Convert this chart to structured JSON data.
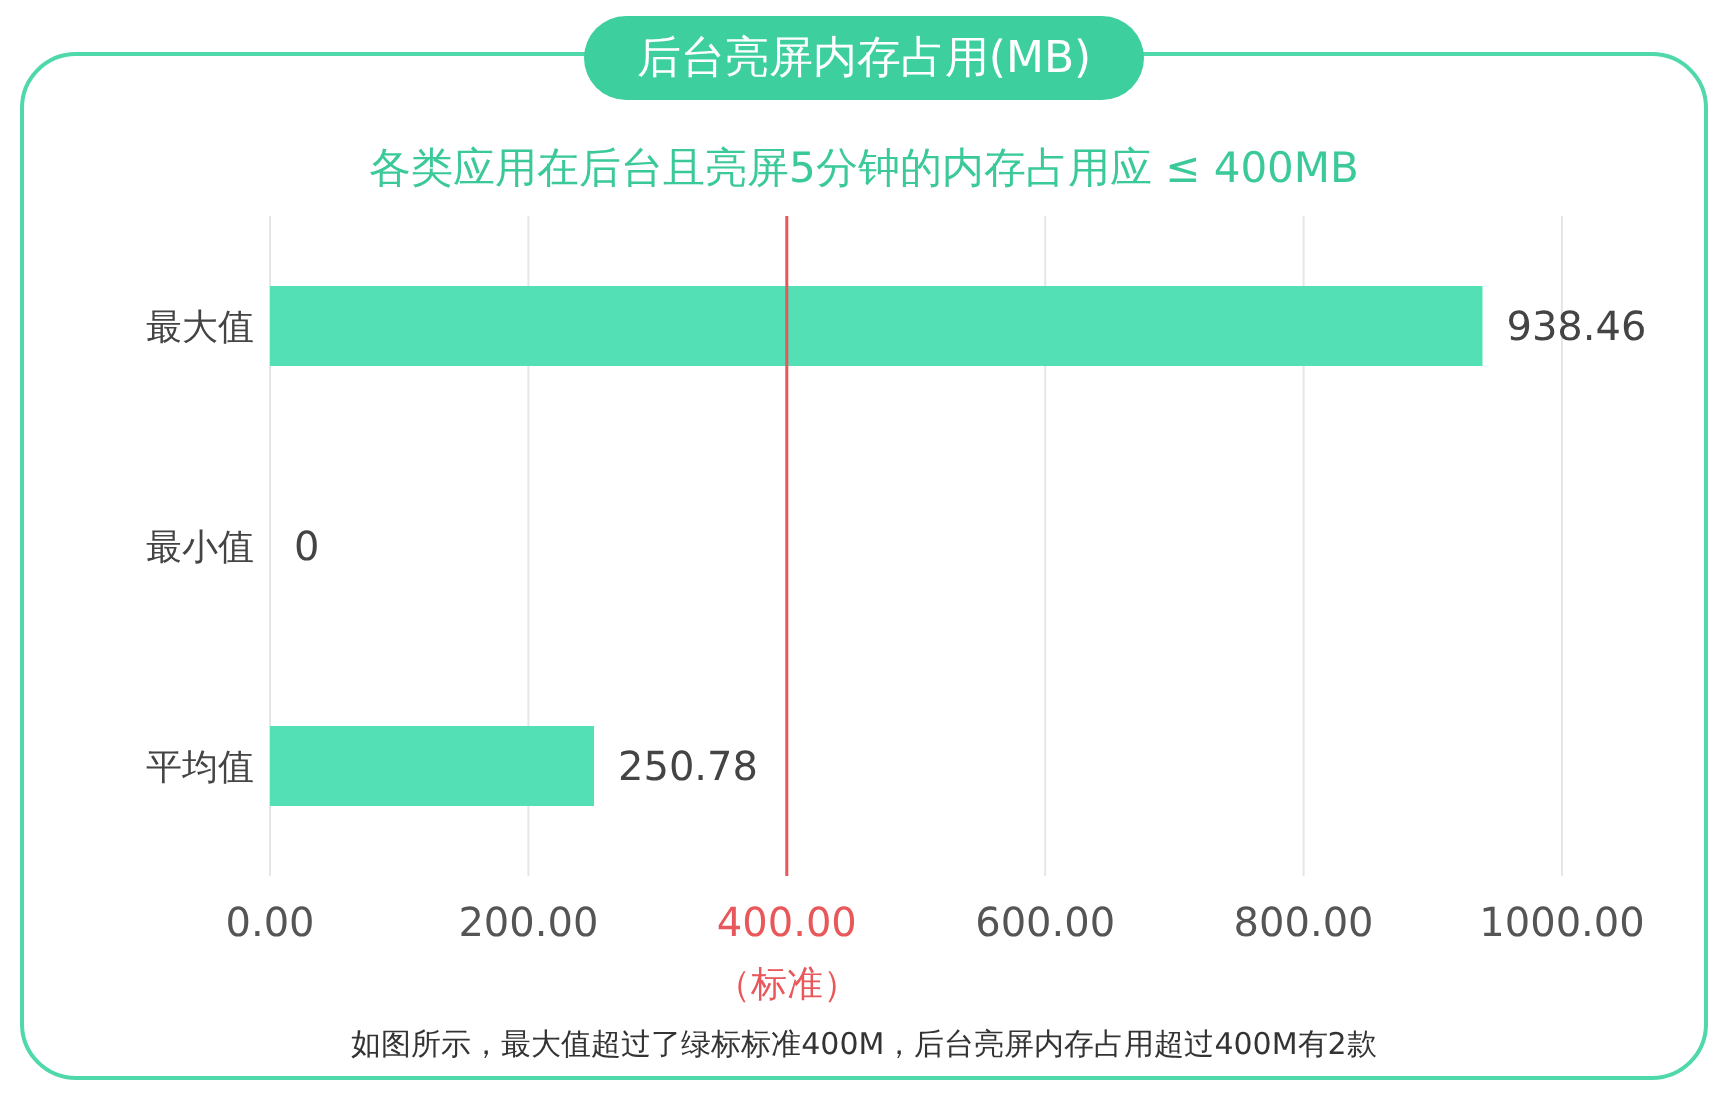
{
  "chart_data": {
    "type": "bar",
    "orientation": "horizontal",
    "title": "后台亮屏内存占用(MB)",
    "subtitle": "各类应用在后台且亮屏5分钟的内存占用应 ≤ 400MB",
    "categories": [
      "最大值",
      "最小值",
      "平均值"
    ],
    "values": [
      938.46,
      0,
      250.78
    ],
    "color": "#52e0b4",
    "data_labels": true,
    "xlim": [
      0,
      1000
    ],
    "xticks": [
      {
        "value": 0,
        "label": "0.00"
      },
      {
        "value": 200,
        "label": "200.00"
      },
      {
        "value": 400,
        "label": "400.00"
      },
      {
        "value": 600,
        "label": "600.00"
      },
      {
        "value": 800,
        "label": "800.00"
      },
      {
        "value": 1000,
        "label": "1000.00"
      }
    ],
    "grid": "x",
    "ref_lines": [
      {
        "axis": "x",
        "value": 400,
        "label": "（标准）",
        "color": "#e8585a"
      }
    ],
    "annotations": [
      "如图所示，最大值超过了绿标标准400M，后台亮屏内存占用超过400M有2款"
    ]
  }
}
